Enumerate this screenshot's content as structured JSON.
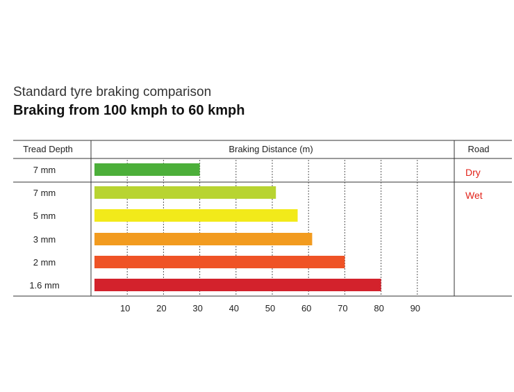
{
  "chart_data": {
    "type": "bar",
    "orientation": "horizontal",
    "title": "Standard tyre braking comparison",
    "subtitle": "Braking from 100 kmph to 60 kmph",
    "columns": {
      "category": "Tread Depth",
      "value": "Braking Distance (m)",
      "group": "Road"
    },
    "categories": [
      "7 mm",
      "7 mm",
      "5 mm",
      "3 mm",
      "2 mm",
      "1.6 mm"
    ],
    "values": [
      30,
      51,
      57,
      61,
      70,
      80
    ],
    "colors": [
      "#4caf3a",
      "#b8d431",
      "#f2ea1a",
      "#f29b1f",
      "#ef5326",
      "#d3222c"
    ],
    "groups": [
      {
        "label": "Dry",
        "rows": 1,
        "color": "#e2231a"
      },
      {
        "label": "Wet",
        "rows": 5,
        "color": "#e2231a"
      }
    ],
    "xticks": [
      10,
      20,
      30,
      40,
      50,
      60,
      70,
      80,
      90
    ],
    "xlim": [
      0,
      100
    ],
    "grid": true
  }
}
